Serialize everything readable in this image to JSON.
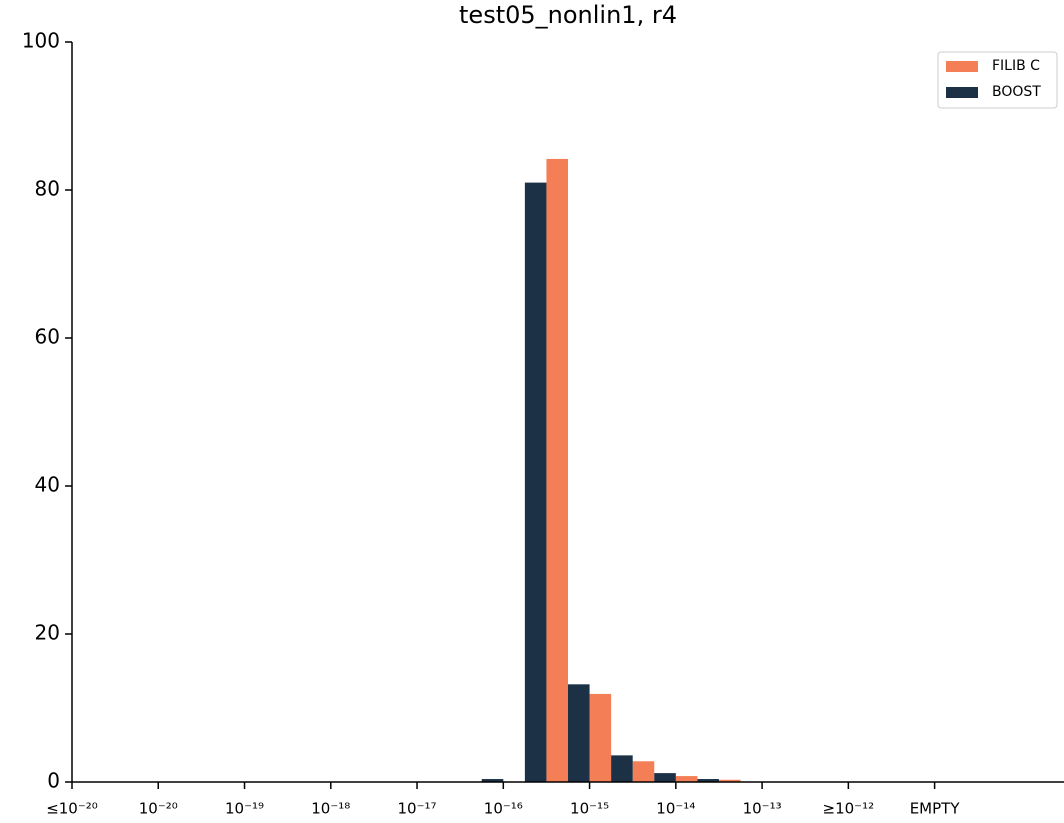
{
  "chart_data": {
    "type": "bar",
    "title": "test05_nonlin1, r4",
    "x": [
      5.0,
      5.5,
      6.0,
      6.5,
      7.0,
      7.5
    ],
    "series": [
      {
        "name": "FILIB C",
        "color": "#f47f57",
        "values": [
          0,
          84.2,
          11.9,
          2.8,
          0.8,
          0.3
        ]
      },
      {
        "name": "BOOST",
        "color": "#1c3146",
        "values": [
          0.4,
          81,
          13.2,
          3.6,
          1.2,
          0.4
        ]
      }
    ],
    "xlim": [
      0,
      11.5
    ],
    "xticks": [
      {
        "value": 0,
        "label": "≤10⁻²⁰"
      },
      {
        "value": 1,
        "label": "10⁻²⁰"
      },
      {
        "value": 2,
        "label": "10⁻¹⁹"
      },
      {
        "value": 3,
        "label": "10⁻¹⁸"
      },
      {
        "value": 4,
        "label": "10⁻¹⁷"
      },
      {
        "value": 5,
        "label": "10⁻¹⁶"
      },
      {
        "value": 6,
        "label": "10⁻¹⁵"
      },
      {
        "value": 7,
        "label": "10⁻¹⁴"
      },
      {
        "value": 8,
        "label": "10⁻¹³"
      },
      {
        "value": 9,
        "label": "≥10⁻¹²"
      },
      {
        "value": 10,
        "label": "EMPTY"
      }
    ],
    "ylim": [
      0,
      100
    ],
    "yticks": [
      0,
      20,
      40,
      60,
      80,
      100
    ],
    "legend": "upper right"
  }
}
